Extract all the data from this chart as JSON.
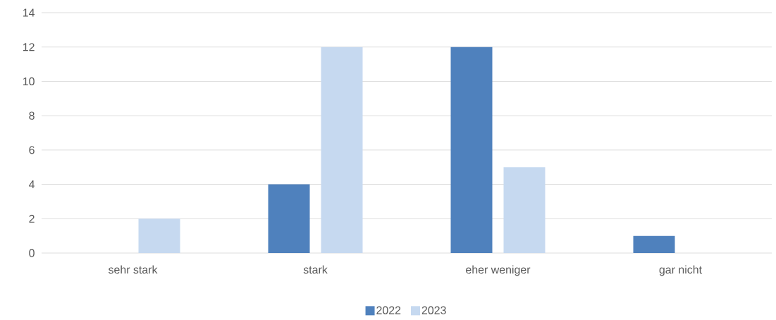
{
  "chart_data": {
    "type": "bar",
    "categories": [
      "sehr stark",
      "stark",
      "eher weniger",
      "gar nicht"
    ],
    "series": [
      {
        "name": "2022",
        "color": "#4f81bd",
        "values": [
          0,
          4,
          12,
          1
        ]
      },
      {
        "name": "2023",
        "color": "#c6d9f0",
        "values": [
          2,
          12,
          5,
          0
        ]
      }
    ],
    "ylim": [
      0,
      14
    ],
    "yticks": [
      0,
      2,
      4,
      6,
      8,
      10,
      12,
      14
    ],
    "grid": "y",
    "legend": "bottom"
  }
}
